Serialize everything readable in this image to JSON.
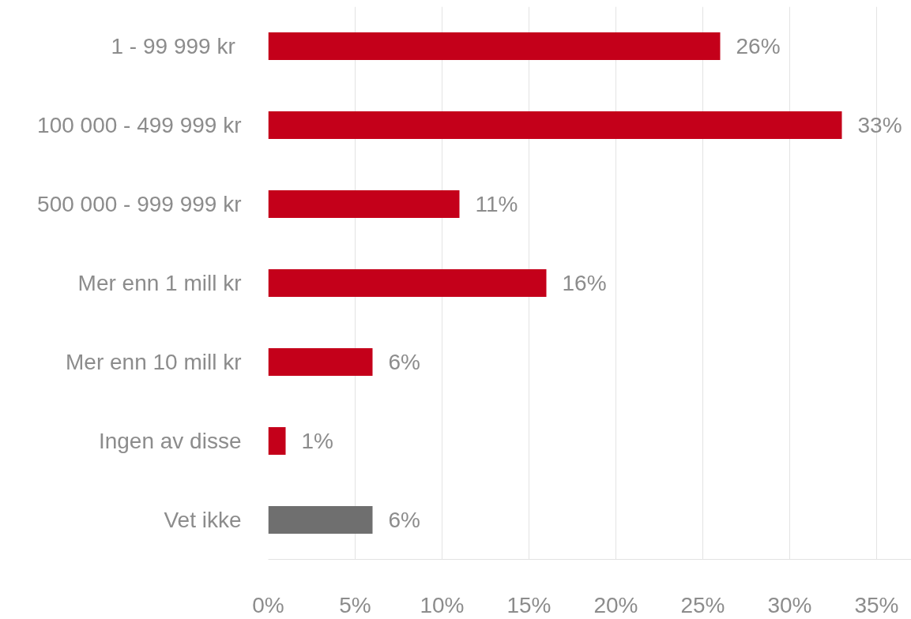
{
  "chart_data": {
    "type": "bar",
    "orientation": "horizontal",
    "categories": [
      "1  - 99 999 kr",
      "100 000 - 499 999 kr",
      "500 000 - 999 999 kr",
      "Mer enn 1 mill kr",
      "Mer enn 10 mill kr",
      "Ingen av disse",
      "Vet ikke"
    ],
    "values": [
      26,
      33,
      11,
      16,
      6,
      1,
      6
    ],
    "colors": [
      "#c4001a",
      "#c4001a",
      "#c4001a",
      "#c4001a",
      "#c4001a",
      "#c4001a",
      "#6f6f6f"
    ],
    "value_labels": [
      "26%",
      "33%",
      "11%",
      "16%",
      "6%",
      "1%",
      "6%"
    ],
    "xlim": [
      0,
      37
    ],
    "xticks": [
      {
        "value": 0,
        "label": "0%"
      },
      {
        "value": 5,
        "label": "5%"
      },
      {
        "value": 10,
        "label": "10%"
      },
      {
        "value": 15,
        "label": "15%"
      },
      {
        "value": 20,
        "label": "20%"
      },
      {
        "value": 25,
        "label": "25%"
      },
      {
        "value": 30,
        "label": "30%"
      },
      {
        "value": 35,
        "label": "35%"
      }
    ],
    "grid": "x"
  }
}
